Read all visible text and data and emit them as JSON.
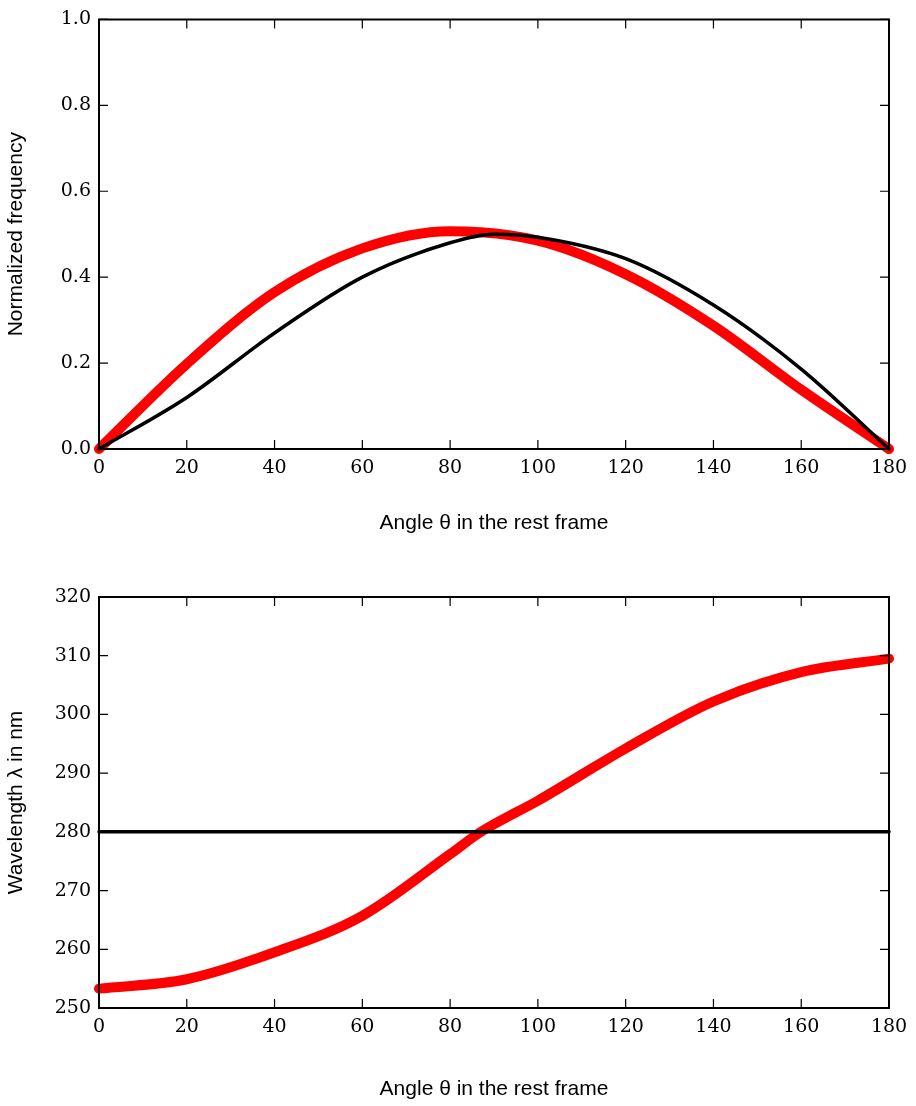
{
  "chart_data": [
    {
      "type": "line",
      "xlabel": "Angle θ in the rest frame",
      "ylabel": "Normalized frequency",
      "xlim": [
        0,
        180
      ],
      "xticks": [
        0,
        20,
        40,
        60,
        80,
        100,
        120,
        140,
        160,
        180
      ],
      "ylim": [
        0,
        1
      ],
      "yticks": [
        {
          "value": 0,
          "label": "0.0"
        },
        0.2,
        0.4,
        0.6,
        0.8,
        {
          "value": 1,
          "label": "1.0"
        }
      ],
      "grid": false,
      "legend": false,
      "marker": "none",
      "line_style": "solid",
      "series": [
        {
          "color": "#000000",
          "x": [
            0,
            20,
            40,
            60,
            80,
            90,
            100,
            120,
            140,
            160,
            180
          ],
          "values": [
            0,
            0.12,
            0.27,
            0.4,
            0.48,
            0.5,
            0.493,
            0.443,
            0.335,
            0.186,
            0
          ]
        },
        {
          "color": "#ff0000",
          "x": [
            0,
            20,
            40,
            60,
            80,
            100,
            120,
            140,
            160,
            180
          ],
          "values": [
            0,
            0.198,
            0.365,
            0.467,
            0.507,
            0.485,
            0.407,
            0.287,
            0.138,
            0
          ]
        }
      ]
    },
    {
      "type": "line",
      "xlabel": "Angle θ in the rest frame",
      "ylabel": "Wavelength λ in nm",
      "xlim": [
        0,
        180
      ],
      "xticks": [
        0,
        20,
        40,
        60,
        80,
        100,
        120,
        140,
        160,
        180
      ],
      "ylim": [
        250,
        320
      ],
      "yticks": [
        250,
        260,
        270,
        280,
        290,
        300,
        310,
        320
      ],
      "grid": false,
      "legend": false,
      "marker": "none",
      "line_style": "solid",
      "series": [
        {
          "color": "#000000",
          "x": [
            0,
            180
          ],
          "values": [
            280,
            280
          ]
        },
        {
          "color": "#ff0000",
          "x": [
            0,
            20,
            40,
            60,
            80,
            87,
            100,
            120,
            140,
            160,
            180
          ],
          "values": [
            253.3,
            254.9,
            259.5,
            265.7,
            276.2,
            280,
            285.3,
            294.2,
            302.2,
            307.2,
            309.5
          ]
        }
      ]
    }
  ]
}
